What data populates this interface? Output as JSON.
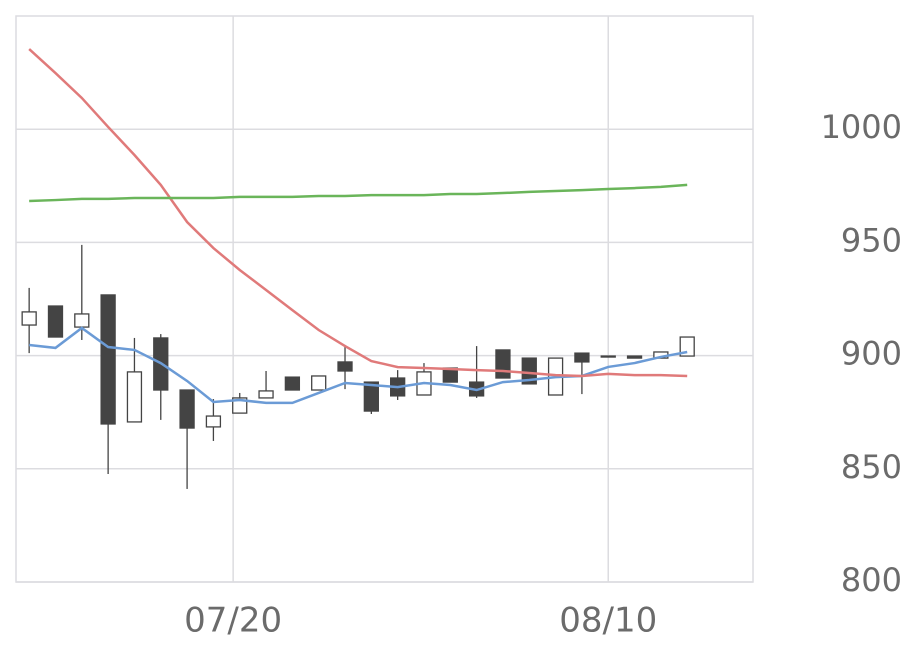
{
  "chart_data": {
    "type": "candlestick",
    "x": [
      0,
      1,
      2,
      3,
      4,
      5,
      6,
      7,
      8,
      9,
      10,
      11,
      12,
      13,
      14,
      15,
      16,
      17,
      18,
      19,
      20,
      21,
      22,
      23,
      24,
      25
    ],
    "open": [
      913.5,
      921.9,
      912.6,
      926.8,
      870.7,
      907.8,
      884.8,
      868.5,
      874.6,
      881.3,
      890.5,
      884.8,
      897.2,
      888.3,
      890.1,
      882.6,
      894.5,
      888.3,
      902.5,
      898.9,
      882.6,
      901.1,
      899.8,
      899.8,
      898.9,
      899.8
    ],
    "high": [
      929.9,
      921.9,
      948.9,
      926.8,
      907.8,
      909.5,
      884.8,
      880.8,
      883.5,
      893.2,
      890.5,
      891.0,
      904.7,
      888.3,
      893.6,
      896.7,
      894.5,
      904.2,
      902.5,
      898.9,
      898.9,
      901.1,
      899.8,
      899.8,
      901.6,
      908.2
    ],
    "low": [
      901.1,
      908.2,
      906.9,
      847.7,
      870.7,
      871.6,
      841.1,
      862.3,
      874.6,
      881.3,
      884.8,
      884.8,
      885.2,
      874.2,
      880.4,
      882.6,
      888.3,
      881.3,
      890.1,
      887.5,
      882.6,
      883.0,
      899.4,
      898.9,
      898.9,
      899.8
    ],
    "close": [
      919.3,
      908.2,
      918.4,
      869.8,
      892.8,
      884.8,
      868.0,
      873.3,
      881.3,
      884.4,
      884.8,
      891.0,
      893.2,
      875.5,
      882.2,
      892.8,
      888.3,
      882.2,
      890.1,
      887.5,
      898.9,
      897.2,
      899.4,
      898.9,
      901.6,
      908.2
    ],
    "up_color": "#ffffff",
    "down_color": "#444444",
    "edge_color": "#444444",
    "series": [
      {
        "color": "#6b9bd6",
        "values": [
          904.7,
          903.4,
          912.2,
          903.8,
          902.5,
          896.7,
          888.8,
          879.5,
          880.4,
          879.1,
          879.1,
          883.5,
          887.9,
          887.0,
          886.1,
          887.9,
          887.0,
          884.8,
          888.3,
          889.2,
          890.5,
          891.0,
          895.0,
          896.7,
          899.4,
          901.6
        ]
      },
      {
        "color": "#e07a7a",
        "values": [
          1035.4,
          1024.8,
          1013.8,
          1001.0,
          988.6,
          975.4,
          959.0,
          947.5,
          937.8,
          929.0,
          920.1,
          911.3,
          904.2,
          897.6,
          894.9,
          894.5,
          894.1,
          893.6,
          893.2,
          892.3,
          891.4,
          891.0,
          891.9,
          891.4,
          891.4,
          891.0
        ]
      },
      {
        "color": "#6ab55a",
        "values": [
          968.3,
          968.7,
          969.2,
          969.2,
          969.6,
          969.6,
          969.6,
          969.6,
          970.1,
          970.1,
          970.1,
          970.5,
          970.5,
          970.9,
          970.9,
          970.9,
          971.4,
          971.4,
          971.8,
          972.3,
          972.7,
          973.1,
          973.6,
          974.0,
          974.5,
          975.4
        ]
      }
    ],
    "xlim": [
      -0.5,
      27.5
    ],
    "xticks": [
      {
        "value": 7.75,
        "label": "07/20"
      },
      {
        "value": 22,
        "label": "08/10"
      }
    ],
    "ylim": [
      800,
      1050
    ],
    "yticks": [
      800,
      850,
      900,
      950,
      1000
    ],
    "grid": true
  }
}
